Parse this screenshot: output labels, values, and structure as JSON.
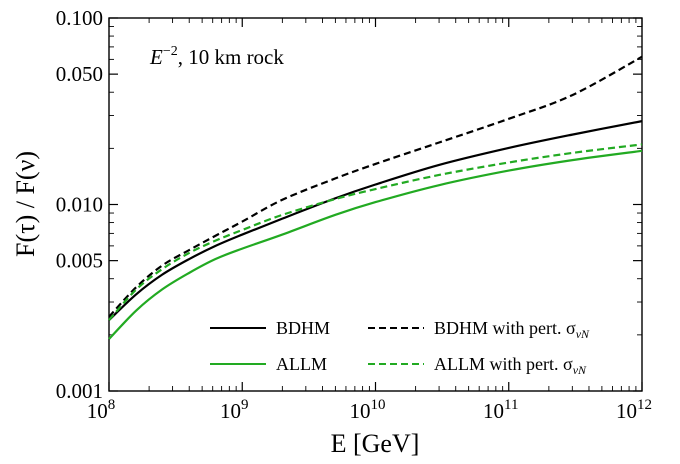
{
  "chart_data": {
    "type": "line",
    "title": "",
    "xlabel": "E [GeV]",
    "ylabel": "F(τ) / F(ν)",
    "x_scale": "log",
    "y_scale": "log",
    "xlim": [
      100000000.0,
      1000000000000.0
    ],
    "ylim": [
      0.001,
      0.1
    ],
    "x_ticks": [
      {
        "value": 100000000.0,
        "base": "10",
        "exp": "8"
      },
      {
        "value": 1000000000.0,
        "base": "10",
        "exp": "9"
      },
      {
        "value": 10000000000.0,
        "base": "10",
        "exp": "10"
      },
      {
        "value": 100000000000.0,
        "base": "10",
        "exp": "11"
      },
      {
        "value": 1000000000000.0,
        "base": "10",
        "exp": "12"
      }
    ],
    "y_ticks": [
      {
        "value": 0.001,
        "label": "0.001"
      },
      {
        "value": 0.005,
        "label": "0.005"
      },
      {
        "value": 0.01,
        "label": "0.010"
      },
      {
        "value": 0.05,
        "label": "0.050"
      },
      {
        "value": 0.1,
        "label": "0.100"
      }
    ],
    "annotation": {
      "base": "E",
      "sup": "−2",
      "rest": ",  10 km rock"
    },
    "grid": false,
    "legend_position": "bottom-right",
    "series": [
      {
        "name": "BDHM",
        "color": "#000000",
        "dash": "solid",
        "x": [
          100000000.0,
          160000000.0,
          250000000.0,
          400000000.0,
          630000000.0,
          1000000000.0,
          2000000000.0,
          5000000000.0,
          10000000000.0,
          30000000000.0,
          100000000000.0,
          300000000000.0,
          1000000000000.0
        ],
        "y": [
          0.0024,
          0.0033,
          0.0042,
          0.0051,
          0.006,
          0.0069,
          0.0084,
          0.0108,
          0.0128,
          0.0163,
          0.0201,
          0.0237,
          0.028
        ]
      },
      {
        "name": "BDHM with pert. σ",
        "name_sub": "νN",
        "color": "#000000",
        "dash": "dashed",
        "x": [
          100000000.0,
          160000000.0,
          250000000.0,
          400000000.0,
          630000000.0,
          1000000000.0,
          2000000000.0,
          5000000000.0,
          10000000000.0,
          30000000000.0,
          100000000000.0,
          300000000000.0,
          1000000000000.0
        ],
        "y": [
          0.0025,
          0.0036,
          0.0047,
          0.0057,
          0.0068,
          0.0081,
          0.0106,
          0.0138,
          0.0165,
          0.0215,
          0.0288,
          0.0386,
          0.062
        ]
      },
      {
        "name": "ALLM",
        "color": "#22aa22",
        "dash": "solid",
        "x": [
          100000000.0,
          160000000.0,
          250000000.0,
          400000000.0,
          630000000.0,
          1000000000.0,
          2000000000.0,
          5000000000.0,
          10000000000.0,
          30000000000.0,
          100000000000.0,
          300000000000.0,
          1000000000000.0
        ],
        "y": [
          0.0019,
          0.0027,
          0.0035,
          0.0043,
          0.0051,
          0.0058,
          0.0069,
          0.0088,
          0.0103,
          0.0127,
          0.0152,
          0.0173,
          0.0194
        ]
      },
      {
        "name": "ALLM with pert. σ",
        "name_sub": "νN",
        "color": "#22aa22",
        "dash": "dashed",
        "x": [
          100000000.0,
          160000000.0,
          250000000.0,
          400000000.0,
          630000000.0,
          1000000000.0,
          2000000000.0,
          5000000000.0,
          10000000000.0,
          30000000000.0,
          100000000000.0,
          300000000000.0,
          1000000000000.0
        ],
        "y": [
          0.0024,
          0.0035,
          0.0045,
          0.0055,
          0.0064,
          0.0073,
          0.0088,
          0.0107,
          0.0121,
          0.0144,
          0.0168,
          0.0189,
          0.021
        ]
      }
    ]
  }
}
